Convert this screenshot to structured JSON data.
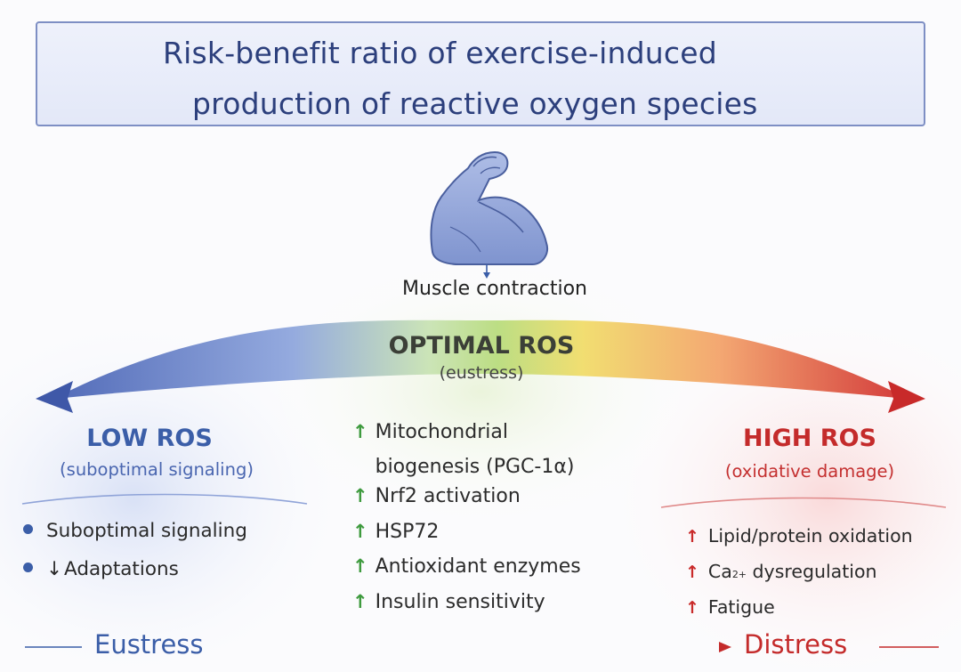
{
  "title": {
    "line1": "Risk-benefit ratio of exercise-induced",
    "line2": "production of reactive oxygen species"
  },
  "muscle": {
    "caption": "Muscle contraction",
    "icon": "flexed-arm-icon"
  },
  "optimal": {
    "heading": "OPTIMAL ROS",
    "subheading": "(eustress)"
  },
  "low": {
    "heading": "LOW ROS",
    "subheading": "(suboptimal signaling)",
    "items": [
      {
        "marker": "bullet",
        "text": "Suboptimal signaling"
      },
      {
        "marker": "↓",
        "text": "Adaptations"
      }
    ]
  },
  "optimal_effects": {
    "marker": "↑",
    "items": [
      "Mitochondrial\nbiogenesis (PGC-1α)",
      "Nrf2 activation",
      "HSP72",
      "Antioxidant enzymes",
      "Insulin sensitivity"
    ]
  },
  "high": {
    "heading": "HIGH ROS",
    "subheading": "(oxidative damage)",
    "marker": "↑",
    "items": [
      {
        "pre": "Lipid/protein oxidation",
        "sup": "",
        "post": ""
      },
      {
        "pre": "Ca",
        "sup": "2+",
        "post": " dysregulation"
      },
      {
        "pre": "Fatigue",
        "sup": "",
        "post": ""
      }
    ]
  },
  "scale": {
    "left": "Eustress",
    "right": "Distress"
  },
  "colors": {
    "low_blue": "#3b5ea8",
    "optimal_green": "#3e9a3e",
    "high_red": "#c42b2b",
    "title_text": "#2c3f7c",
    "title_border": "#7e8fc4"
  }
}
